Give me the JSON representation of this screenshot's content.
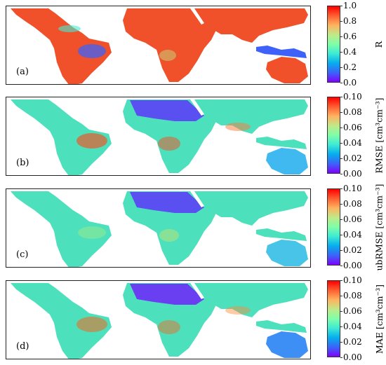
{
  "panels": [
    {
      "label": "(a)",
      "colorbar": {
        "title": "R",
        "ticks": [
          "1.0",
          "0.8",
          "0.6",
          "0.4",
          "0.2",
          "0.0"
        ]
      },
      "dominant_color": "#ef3b2c"
    },
    {
      "label": "(b)",
      "colorbar": {
        "title": "RMSE [cm³cm⁻³]",
        "ticks": [
          "0.10",
          "0.08",
          "0.06",
          "0.04",
          "0.02",
          "0.00"
        ]
      },
      "dominant_color": "#44d6b4"
    },
    {
      "label": "(c)",
      "colorbar": {
        "title": "ubRMSE [cm³cm⁻³]",
        "ticks": [
          "0.10",
          "0.08",
          "0.06",
          "0.04",
          "0.02",
          "0.00"
        ]
      },
      "dominant_color": "#44d6b4"
    },
    {
      "label": "(d)",
      "colorbar": {
        "title": "MAE [cm³cm⁻³]",
        "ticks": [
          "0.10",
          "0.08",
          "0.06",
          "0.04",
          "0.02",
          "0.00"
        ]
      },
      "dominant_color": "#44d6b4"
    }
  ],
  "colormap": [
    "#7f00ff",
    "#3d61f9",
    "#06aeed",
    "#40ecd3",
    "#80fea8",
    "#bdeb8a",
    "#ffb360",
    "#ff5b30",
    "#ff0000"
  ]
}
